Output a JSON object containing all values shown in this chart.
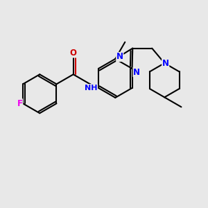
{
  "background_color": "#e8e8e8",
  "bond_color": "#000000",
  "N_color": "#0000ff",
  "O_color": "#cc0000",
  "F_color": "#ee00ee",
  "line_width": 1.5,
  "font_size": 8.5,
  "figsize": [
    3.0,
    3.0
  ],
  "dpi": 100,
  "xlim": [
    0,
    10
  ],
  "ylim": [
    0,
    10
  ]
}
